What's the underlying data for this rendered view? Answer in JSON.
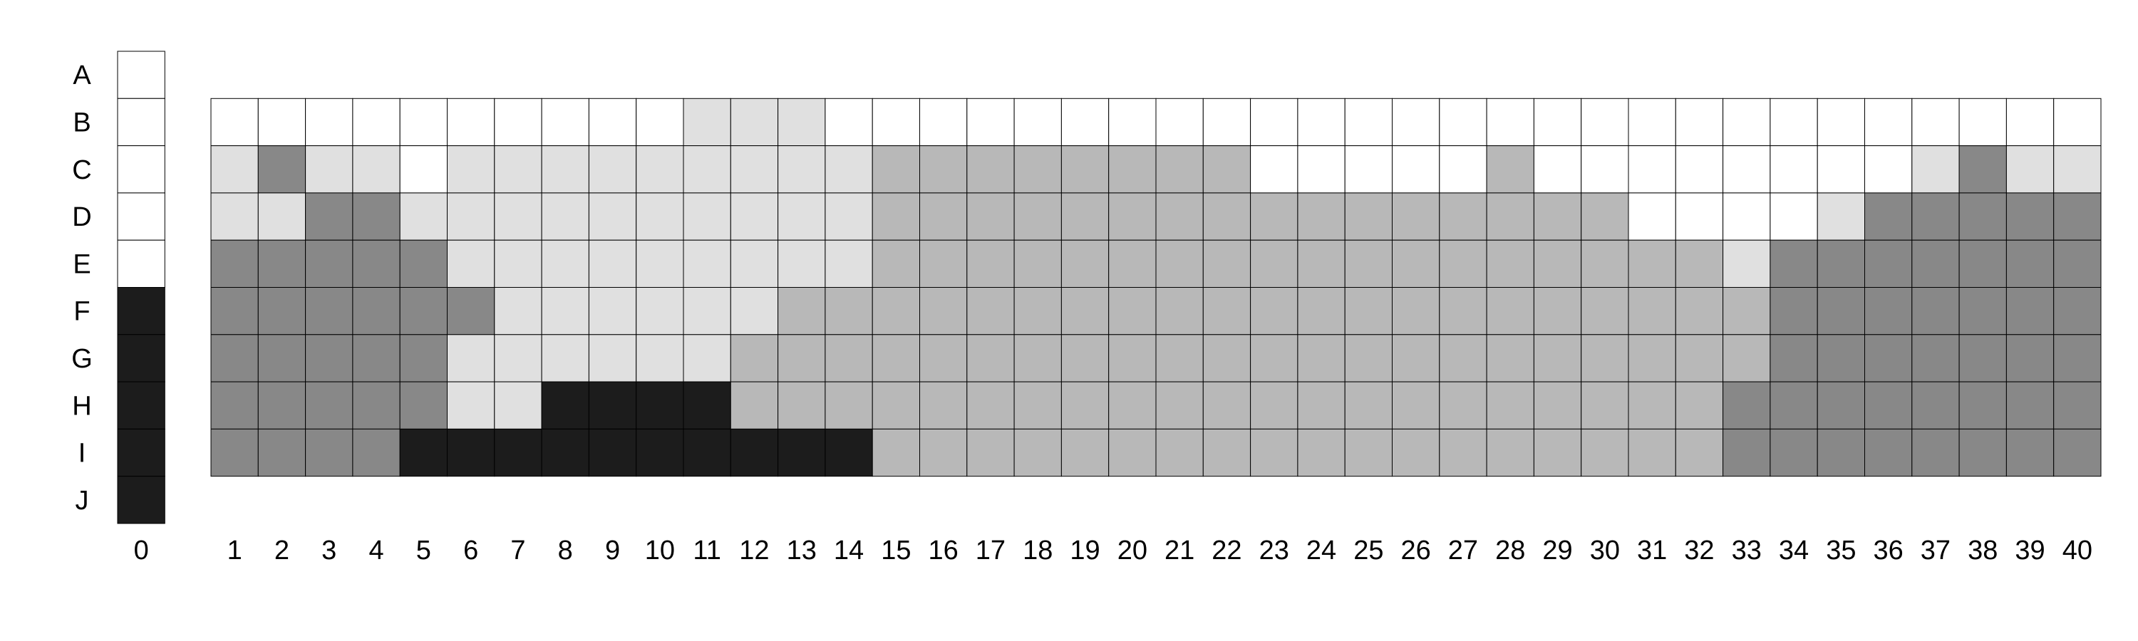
{
  "palette": {
    "0": "#ffffff",
    "1": "#e0e0e0",
    "2": "#b8b8b8",
    "3": "#888888",
    "4": "#1c1c1c"
  },
  "row_labels": [
    "A",
    "B",
    "C",
    "D",
    "E",
    "F",
    "G",
    "H",
    "I",
    "J"
  ],
  "reference_column": {
    "label": "0",
    "cells": [
      0,
      0,
      0,
      0,
      0,
      4,
      4,
      4,
      4,
      4
    ]
  },
  "column_labels": [
    "1",
    "2",
    "3",
    "4",
    "5",
    "6",
    "7",
    "8",
    "9",
    "10",
    "11",
    "12",
    "13",
    "14",
    "15",
    "16",
    "17",
    "18",
    "19",
    "20",
    "21",
    "22",
    "23",
    "24",
    "25",
    "26",
    "27",
    "28",
    "29",
    "30",
    "31",
    "32",
    "33",
    "34",
    "35",
    "36",
    "37",
    "38",
    "39",
    "40"
  ],
  "main_grid": {
    "first_row": "B",
    "rows": [
      [
        0,
        0,
        0,
        0,
        0,
        0,
        0,
        0,
        0,
        0,
        1,
        1,
        1,
        0,
        0,
        0,
        0,
        0,
        0,
        0,
        0,
        0,
        0,
        0,
        0,
        0,
        0,
        0,
        0,
        0,
        0,
        0,
        0,
        0,
        0,
        0,
        0,
        0,
        0,
        0
      ],
      [
        1,
        3,
        1,
        1,
        0,
        1,
        1,
        1,
        1,
        1,
        1,
        1,
        1,
        1,
        2,
        2,
        2,
        2,
        2,
        2,
        2,
        2,
        0,
        0,
        0,
        0,
        0,
        2,
        0,
        0,
        0,
        0,
        0,
        0,
        0,
        0,
        1,
        3,
        1,
        1
      ],
      [
        1,
        1,
        3,
        3,
        1,
        1,
        1,
        1,
        1,
        1,
        1,
        1,
        1,
        1,
        2,
        2,
        2,
        2,
        2,
        2,
        2,
        2,
        2,
        2,
        2,
        2,
        2,
        2,
        2,
        2,
        0,
        0,
        0,
        0,
        1,
        3,
        3,
        3,
        3,
        3
      ],
      [
        3,
        3,
        3,
        3,
        3,
        1,
        1,
        1,
        1,
        1,
        1,
        1,
        1,
        1,
        2,
        2,
        2,
        2,
        2,
        2,
        2,
        2,
        2,
        2,
        2,
        2,
        2,
        2,
        2,
        2,
        2,
        2,
        1,
        3,
        3,
        3,
        3,
        3,
        3,
        3
      ],
      [
        3,
        3,
        3,
        3,
        3,
        3,
        1,
        1,
        1,
        1,
        1,
        1,
        2,
        2,
        2,
        2,
        2,
        2,
        2,
        2,
        2,
        2,
        2,
        2,
        2,
        2,
        2,
        2,
        2,
        2,
        2,
        2,
        2,
        3,
        3,
        3,
        3,
        3,
        3,
        3
      ],
      [
        3,
        3,
        3,
        3,
        3,
        1,
        1,
        1,
        1,
        1,
        1,
        2,
        2,
        2,
        2,
        2,
        2,
        2,
        2,
        2,
        2,
        2,
        2,
        2,
        2,
        2,
        2,
        2,
        2,
        2,
        2,
        2,
        2,
        3,
        3,
        3,
        3,
        3,
        3,
        3
      ],
      [
        3,
        3,
        3,
        3,
        3,
        1,
        1,
        4,
        4,
        4,
        4,
        2,
        2,
        2,
        2,
        2,
        2,
        2,
        2,
        2,
        2,
        2,
        2,
        2,
        2,
        2,
        2,
        2,
        2,
        2,
        2,
        2,
        3,
        3,
        3,
        3,
        3,
        3,
        3,
        3
      ],
      [
        3,
        3,
        3,
        3,
        4,
        4,
        4,
        4,
        4,
        4,
        4,
        4,
        4,
        4,
        2,
        2,
        2,
        2,
        2,
        2,
        2,
        2,
        2,
        2,
        2,
        2,
        2,
        2,
        2,
        2,
        2,
        2,
        3,
        3,
        3,
        3,
        3,
        3,
        3,
        3
      ]
    ]
  }
}
